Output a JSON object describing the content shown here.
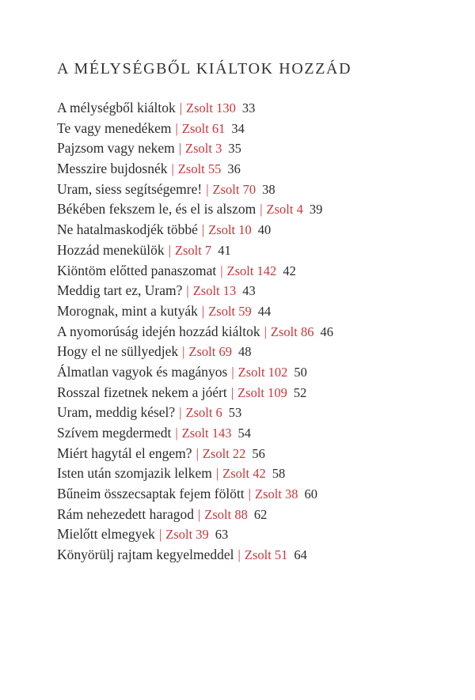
{
  "section_title": "A MÉLYSÉGBŐL KIÁLTOK HOZZÁD",
  "separator": "|",
  "accent_color": "#c8373a",
  "entries": [
    {
      "title": "A mélységből kiáltok",
      "ref": "Zsolt 130",
      "page": "33"
    },
    {
      "title": "Te vagy menedékem",
      "ref": "Zsolt 61",
      "page": "34"
    },
    {
      "title": "Pajzsom vagy nekem",
      "ref": "Zsolt 3",
      "page": "35"
    },
    {
      "title": "Messzire bujdosnék",
      "ref": "Zsolt 55",
      "page": "36"
    },
    {
      "title": "Uram, siess segítségemre!",
      "ref": "Zsolt 70",
      "page": "38"
    },
    {
      "title": "Békében fekszem le, és el is alszom",
      "ref": "Zsolt 4",
      "page": "39"
    },
    {
      "title": "Ne hatalmaskodjék többé",
      "ref": "Zsolt 10",
      "page": "40"
    },
    {
      "title": "Hozzád menekülök",
      "ref": "Zsolt 7",
      "page": "41"
    },
    {
      "title": "Kiöntöm előtted panaszomat",
      "ref": "Zsolt 142",
      "page": "42"
    },
    {
      "title": "Meddig tart ez, Uram?",
      "ref": "Zsolt 13",
      "page": "43"
    },
    {
      "title": "Morognak, mint a kutyák",
      "ref": "Zsolt 59",
      "page": "44"
    },
    {
      "title": "A nyomorúság idején hozzád kiáltok",
      "ref": "Zsolt 86",
      "page": "46"
    },
    {
      "title": "Hogy el ne süllyedjek",
      "ref": "Zsolt 69",
      "page": "48"
    },
    {
      "title": "Álmatlan vagyok és magányos",
      "ref": "Zsolt 102",
      "page": "50"
    },
    {
      "title": "Rosszal fizetnek nekem a jóért",
      "ref": "Zsolt 109",
      "page": "52"
    },
    {
      "title": "Uram, meddig késel?",
      "ref": "Zsolt 6",
      "page": "53"
    },
    {
      "title": "Szívem megdermedt",
      "ref": "Zsolt 143",
      "page": "54"
    },
    {
      "title": "Miért hagytál el engem?",
      "ref": "Zsolt 22",
      "page": "56"
    },
    {
      "title": "Isten után szomjazik lelkem",
      "ref": "Zsolt 42",
      "page": "58"
    },
    {
      "title": "Bűneim összecsaptak fejem fölött",
      "ref": "Zsolt 38",
      "page": "60"
    },
    {
      "title": "Rám nehezedett haragod",
      "ref": "Zsolt 88",
      "page": "62"
    },
    {
      "title": "Mielőtt elmegyek",
      "ref": "Zsolt 39",
      "page": "63"
    },
    {
      "title": "Könyörülj rajtam kegyelmeddel",
      "ref": "Zsolt 51",
      "page": "64"
    }
  ]
}
